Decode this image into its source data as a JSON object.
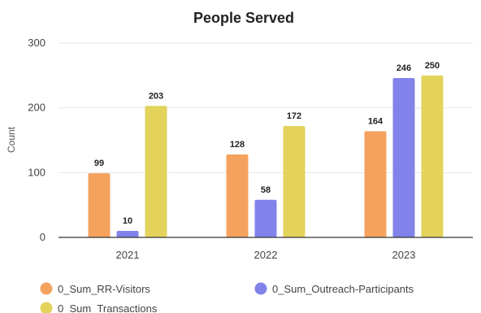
{
  "chart_data": {
    "type": "bar",
    "title": "People Served",
    "xlabel": "",
    "ylabel": "Count",
    "categories": [
      "2021",
      "2022",
      "2023"
    ],
    "series": [
      {
        "name": "0_Sum_RR-Visitors",
        "values": [
          99,
          128,
          164
        ],
        "color": "#F5A25F"
      },
      {
        "name": "0_Sum_Outreach-Participants",
        "values": [
          10,
          58,
          246
        ],
        "color": "#8183EA"
      },
      {
        "name": "0_Sum_Transactions",
        "values": [
          203,
          172,
          250
        ],
        "color": "#E4D35B"
      }
    ],
    "ylim": [
      0,
      300
    ],
    "yticks": [
      0,
      100,
      200,
      300
    ],
    "grid": true,
    "legend_position": "bottom"
  }
}
